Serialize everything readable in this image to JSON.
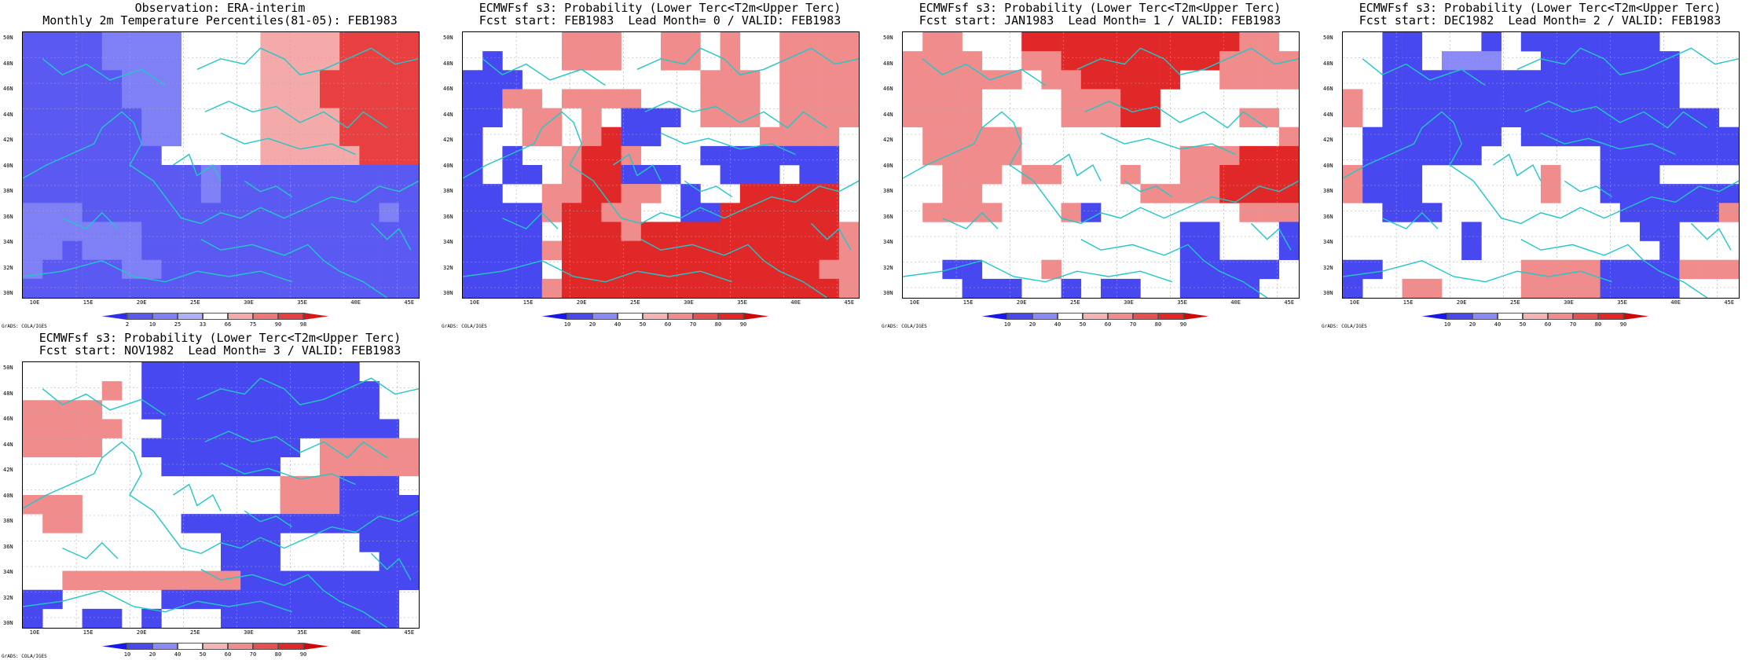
{
  "panels": [
    {
      "title1": "Observation: ERA-interim",
      "title2": "Monthly 2m Temperature Percentiles(81-05): FEB1983",
      "colorbar": {
        "ticks": [
          "2",
          "10",
          "25",
          "33",
          "66",
          "75",
          "90",
          "98"
        ],
        "colors": [
          "#2f2fe8",
          "#5a5af2",
          "#8080f6",
          "#b0b0fa",
          "#ffffff",
          "#f5aaaa",
          "#f07676",
          "#e84040",
          "#d81818"
        ]
      },
      "grid": [
        "BBBBbbbb....aaaaRRRR",
        "BBBBbbbb....aaaaRRRR",
        "BBBBBbbb....aaaRRRRR",
        "BBBBBbbb....aaaRRRRR",
        "BBBBBBbb....aaaaRRRR",
        "BBBBBBbb....aaaaRRRR",
        "BBBBBBB.....aaaaaRRR",
        "BBBBBBBBBbBBBBBBBBBB",
        "BBBBBBBBBbBBBBBBBBBB",
        "bbbBBBBBBBBBBBBBBBbB",
        "bbbbbbBBBBBBBBBBBBBB",
        "bbBbbbBBBBBBBBBBBBBB",
        "bBBBBbbBBBBBBBBBBBBB",
        "BBBBBBBBBBBBBBBBBBBB"
      ]
    },
    {
      "title1": "ECMWFsf s3: Probability (Lower Terc<T2m<Upper Terc)",
      "title2": "Fcst start: FEB1983  Lead Month= 0 / VALID: FEB1983",
      "colorbar": {
        "ticks": [
          "10",
          "20",
          "40",
          "50",
          "60",
          "70",
          "80",
          "90"
        ],
        "colors": [
          "#1818e8",
          "#4848f0",
          "#8a8af6",
          "#ffffff",
          "#f5b4b4",
          "#f08c8c",
          "#e85050",
          "#e02828",
          "#d00808"
        ]
      },
      "grid": [
        ".....aaa..aa.a..aaaa",
        ".B...aaa..aa.a..aaaa",
        "BBB.........aaa.aaaa",
        "BBaa.aaaa...aaa.aaaa",
        "BB.aa.a.BBB.aaa.aaaa",
        "B..aa.aRBB.....aaaa.",
        "B.B..aRRa...BBBBBBB.",
        "B.BB.aRRBBB..BBB.BB.",
        "BB..aaRRaa.B..RRRRR.",
        "BBBBaRRaa..BBRRRRRR.",
        "BBBB.RRRaRRRRRRRRRRa",
        "BBBBaRRRRRRRRRRRRRRa",
        "BBBB.RRRRRRRRRRRRRaa",
        "BBBBaRRRRRRRRRRRRRRa"
      ]
    },
    {
      "title1": "ECMWFsf s3: Probability (Lower Terc<T2m<Upper Terc)",
      "title2": "Fcst start: JAN1983  Lead Month= 1 / VALID: FEB1983",
      "colorbar": {
        "ticks": [
          "10",
          "20",
          "40",
          "50",
          "60",
          "70",
          "80",
          "90"
        ],
        "colors": [
          "#1818e8",
          "#4848f0",
          "#8a8af6",
          "#ffffff",
          "#f5b4b4",
          "#f08c8c",
          "#e85050",
          "#e02828",
          "#d00808"
        ]
      },
      "grid": [
        ".aa...RRRRRRRRRRRaa.",
        "aaaa..aaRRRRRRRRaaaa",
        "aaaaaa.aaRRRRR..aaaa",
        "aaaa....aaaRR.......",
        "aaaa....aaaRR....aa.",
        ".aaaaa.............a",
        ".aaaaa........aaaRRR",
        "..aaa.aa...a..aaRRRR",
        "..aa........aaaaRRRR",
        ".aaaa...aB.......aaa",
        "..............BB...B",
        "..............BB...B",
        "..BB...a......BBBBB.",
        "...BBB..B.BB..BBBB.."
      ]
    },
    {
      "title1": "ECMWFsf s3: Probability (Lower Terc<T2m<Upper Terc)",
      "title2": "Fcst start: DEC1982  Lead Month= 2 / VALID: FEB1983",
      "colorbar": {
        "ticks": [
          "10",
          "20",
          "40",
          "50",
          "60",
          "70",
          "80",
          "90"
        ],
        "colors": [
          "#1818e8",
          "#4848f0",
          "#8a8af6",
          "#ffffff",
          "#f5b4b4",
          "#f08c8c",
          "#e85050",
          "#e02828",
          "#d00808"
        ]
      },
      "grid": [
        "..BB...B.BBBBBBB....",
        "..BB.bbb..BBBBBBB...",
        "..BBBBBBBBBBBBBBB...",
        "a.BBBBBBBBBBBBBBB...",
        "a.BBBBBBBBBBBBBBBBB.",
        ".BBBBBBB.BBBBBBBBBBB",
        ".BBBBBB......BBBBBBB",
        "aBBB......a..BBB....",
        "aBBB......a..BBBBBBB",
        "..BBB.........BBBBBa",
        "......B........BB...",
        "......B.........B...",
        "BB.......aaaaBBBBaaa",
        "B..aa....aaaaBBBB..."
      ]
    },
    {
      "title1": "ECMWFsf s3: Probability (Lower Terc<T2m<Upper Terc)",
      "title2": "Fcst start: NOV1982  Lead Month= 3 / VALID: FEB1983",
      "colorbar": {
        "ticks": [
          "10",
          "20",
          "40",
          "50",
          "60",
          "70",
          "80",
          "90"
        ],
        "colors": [
          "#1818e8",
          "#4848f0",
          "#8a8af6",
          "#ffffff",
          "#f5b4b4",
          "#f08c8c",
          "#e85050",
          "#e02828",
          "#d00808"
        ]
      },
      "grid": [
        "......BBBBBBBBBBB...",
        "....a.BBBBBBBBBBBB..",
        "aaaa..BBBBBBBBBBBB..",
        "aaaaa..BBBBBBBBBBBB.",
        "aaaa..BBBBBBBB.aaaaa",
        ".......BBBBBB..aaaaa",
        ".............aaaBBB.",
        "aaa..........aaaBBBB",
        ".aa.....BBBBBBBBBBBB",
        "..........BBB....BBB",
        "..........BBB.....BB",
        "..aaaaaaaaaBBBBBBBBB",
        "BB.....BBBBBBBBBBBB.",
        "B..BB.B...BBBBBBBBB."
      ]
    }
  ],
  "legend_key": {
    "B": 1,
    "b": 2,
    "a": 5,
    "R": 7
  },
  "lat_labels": [
    "50N",
    "48N",
    "46N",
    "44N",
    "42N",
    "40N",
    "38N",
    "36N",
    "34N",
    "32N",
    "30N"
  ],
  "lon_labels": [
    "10E",
    "15E",
    "20E",
    "25E",
    "30E",
    "35E",
    "40E",
    "45E"
  ],
  "credit": "GrADS: COLA/IGES",
  "coast_color": "#20c8c8"
}
